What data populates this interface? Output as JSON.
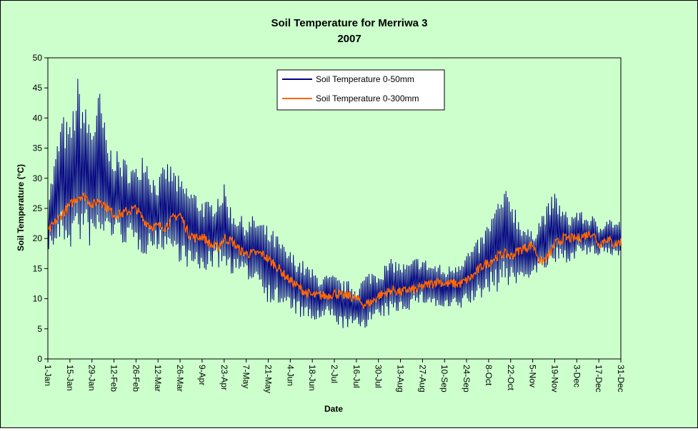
{
  "chart_data": {
    "type": "line",
    "title": "Soil Temperature for Merriwa 3",
    "subtitle": "2007",
    "xlabel": "Date",
    "ylabel": "Soil Temperature (°C)",
    "ylim": [
      0,
      50
    ],
    "yticks": [
      0,
      5,
      10,
      15,
      20,
      25,
      30,
      35,
      40,
      45,
      50
    ],
    "xlim": [
      "2007-01-01",
      "2007-12-31"
    ],
    "xtick_labels": [
      "1-Jan",
      "15-Jan",
      "29-Jan",
      "12-Feb",
      "26-Feb",
      "12-Mar",
      "26-Mar",
      "9-Apr",
      "23-Apr",
      "7-May",
      "21-May",
      "4-Jun",
      "18-Jun",
      "2-Jul",
      "16-Jul",
      "30-Jul",
      "13-Aug",
      "27-Aug",
      "10-Sep",
      "24-Sep",
      "8-Oct",
      "22-Oct",
      "5-Nov",
      "19-Nov",
      "3-Dec",
      "17-Dec",
      "31-Dec"
    ],
    "grid": false,
    "legend_position": "top-center",
    "background": "#ccffcc",
    "plot_background": "#ccffcc",
    "series": [
      {
        "name": "Soil Temperature 0-50mm",
        "color": "#000080",
        "x": [
          "2007-01-01",
          "2007-01-05",
          "2007-01-10",
          "2007-01-15",
          "2007-01-20",
          "2007-01-25",
          "2007-01-29",
          "2007-02-03",
          "2007-02-08",
          "2007-02-12",
          "2007-02-16",
          "2007-02-21",
          "2007-02-26",
          "2007-03-03",
          "2007-03-08",
          "2007-03-12",
          "2007-03-17",
          "2007-03-22",
          "2007-03-26",
          "2007-03-31",
          "2007-04-05",
          "2007-04-09",
          "2007-04-14",
          "2007-04-19",
          "2007-04-23",
          "2007-04-28",
          "2007-05-03",
          "2007-05-07",
          "2007-05-12",
          "2007-05-17",
          "2007-05-21",
          "2007-05-26",
          "2007-05-31",
          "2007-06-04",
          "2007-06-09",
          "2007-06-14",
          "2007-06-18",
          "2007-06-23",
          "2007-06-28",
          "2007-07-02",
          "2007-07-07",
          "2007-07-12",
          "2007-07-16",
          "2007-07-21",
          "2007-07-26",
          "2007-07-30",
          "2007-08-04",
          "2007-08-09",
          "2007-08-13",
          "2007-08-18",
          "2007-08-23",
          "2007-08-27",
          "2007-09-01",
          "2007-09-06",
          "2007-09-10",
          "2007-09-15",
          "2007-09-20",
          "2007-09-24",
          "2007-09-29",
          "2007-10-04",
          "2007-10-08",
          "2007-10-13",
          "2007-10-18",
          "2007-10-22",
          "2007-10-27",
          "2007-11-01",
          "2007-11-05",
          "2007-11-10",
          "2007-11-15",
          "2007-11-19",
          "2007-11-24",
          "2007-11-29",
          "2007-12-03",
          "2007-12-08",
          "2007-12-13",
          "2007-12-17",
          "2007-12-22",
          "2007-12-27",
          "2007-12-31"
        ],
        "max": [
          27,
          33,
          41,
          39,
          47,
          42,
          40,
          45,
          36,
          35,
          34,
          33,
          32,
          36,
          31,
          30,
          33,
          32,
          30,
          29,
          28,
          27,
          26,
          28,
          29,
          25,
          24,
          23,
          24,
          23,
          22,
          21,
          19,
          18,
          17,
          16,
          15,
          14,
          14,
          14,
          13,
          13,
          12,
          14,
          15,
          15,
          16,
          17,
          16,
          16,
          17,
          17,
          16,
          16,
          15,
          16,
          17,
          18,
          19,
          21,
          23,
          26,
          28,
          28,
          24,
          22,
          21,
          24,
          26,
          28,
          25,
          24,
          25,
          24,
          24,
          22,
          24,
          23,
          23
        ],
        "min": [
          18,
          18,
          19,
          18,
          19,
          19,
          18,
          19,
          20,
          20,
          19,
          19,
          18,
          17,
          18,
          18,
          18,
          17,
          16,
          15,
          14,
          14,
          15,
          15,
          15,
          14,
          14,
          13,
          13,
          12,
          9,
          9,
          8,
          8,
          7,
          6,
          6,
          6,
          7,
          6,
          5,
          5,
          5,
          5,
          6,
          6,
          7,
          7,
          8,
          8,
          9,
          9,
          9,
          8,
          8,
          8,
          8,
          9,
          9,
          10,
          11,
          11,
          12,
          12,
          12,
          13,
          14,
          14,
          15,
          15,
          16,
          16,
          17,
          17,
          17,
          17,
          17,
          17,
          17
        ]
      },
      {
        "name": "Soil Temperature  0-300mm",
        "color": "#ff6600",
        "x": [
          "2007-01-01",
          "2007-01-05",
          "2007-01-10",
          "2007-01-15",
          "2007-01-20",
          "2007-01-25",
          "2007-01-29",
          "2007-02-03",
          "2007-02-08",
          "2007-02-12",
          "2007-02-16",
          "2007-02-21",
          "2007-02-26",
          "2007-03-03",
          "2007-03-08",
          "2007-03-12",
          "2007-03-17",
          "2007-03-22",
          "2007-03-26",
          "2007-03-31",
          "2007-04-05",
          "2007-04-09",
          "2007-04-14",
          "2007-04-19",
          "2007-04-23",
          "2007-04-28",
          "2007-05-03",
          "2007-05-07",
          "2007-05-12",
          "2007-05-17",
          "2007-05-21",
          "2007-05-26",
          "2007-05-31",
          "2007-06-04",
          "2007-06-09",
          "2007-06-14",
          "2007-06-18",
          "2007-06-23",
          "2007-06-28",
          "2007-07-02",
          "2007-07-07",
          "2007-07-12",
          "2007-07-16",
          "2007-07-21",
          "2007-07-26",
          "2007-07-30",
          "2007-08-04",
          "2007-08-09",
          "2007-08-13",
          "2007-08-18",
          "2007-08-23",
          "2007-08-27",
          "2007-09-01",
          "2007-09-06",
          "2007-09-10",
          "2007-09-15",
          "2007-09-20",
          "2007-09-24",
          "2007-09-29",
          "2007-10-04",
          "2007-10-08",
          "2007-10-13",
          "2007-10-18",
          "2007-10-22",
          "2007-10-27",
          "2007-11-01",
          "2007-11-05",
          "2007-11-10",
          "2007-11-15",
          "2007-11-19",
          "2007-11-24",
          "2007-11-29",
          "2007-12-03",
          "2007-12-08",
          "2007-12-13",
          "2007-12-17",
          "2007-12-22",
          "2007-12-27",
          "2007-12-31"
        ],
        "values": [
          21,
          22.5,
          24,
          25.5,
          27,
          27,
          25.5,
          26.5,
          25,
          24,
          24,
          24.5,
          25,
          23,
          22,
          22,
          22,
          23.5,
          24,
          21,
          20,
          20.5,
          19,
          18.5,
          20,
          19.5,
          18,
          17.5,
          17.5,
          17.5,
          16.5,
          15.5,
          14,
          13,
          12,
          11,
          10.5,
          10.5,
          10.5,
          11,
          10.5,
          10.5,
          10,
          9,
          9.5,
          10.5,
          11,
          11.5,
          11,
          11.5,
          11.5,
          12,
          12.5,
          13,
          12.5,
          12.5,
          12.5,
          13,
          14,
          15.5,
          16,
          17,
          17.5,
          17,
          18,
          18.5,
          19,
          16,
          17,
          19,
          20,
          20,
          20,
          20.5,
          21,
          19,
          20,
          19,
          19.5
        ]
      }
    ]
  }
}
